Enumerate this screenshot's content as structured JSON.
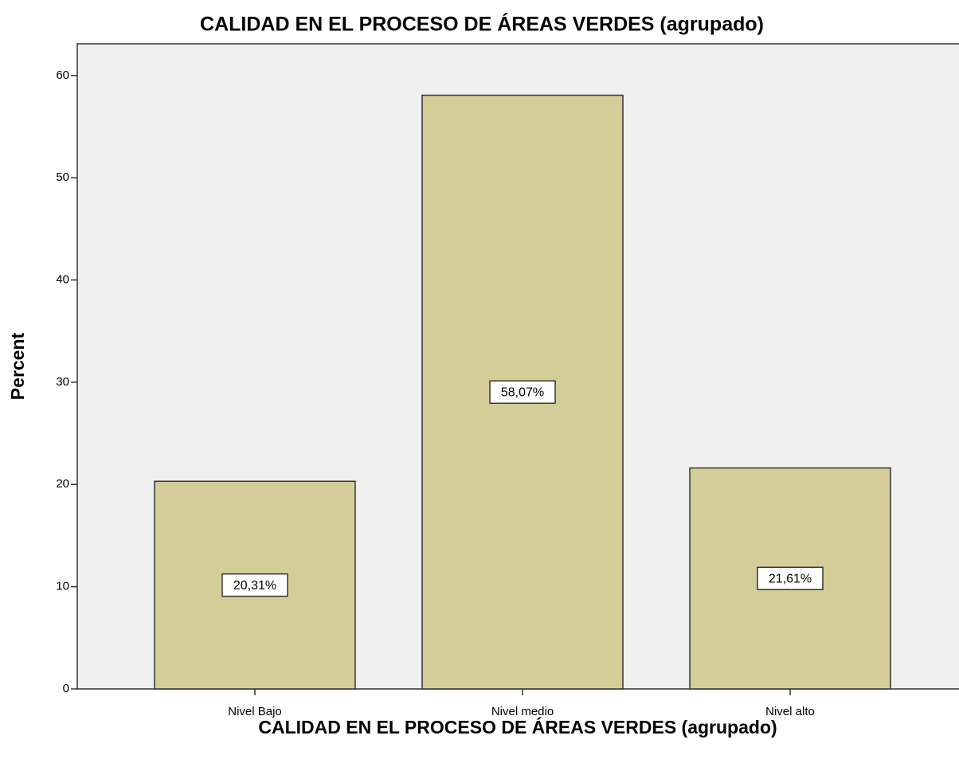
{
  "chart_data": {
    "type": "bar",
    "title": "CALIDAD EN EL PROCESO DE ÁREAS VERDES (agrupado)",
    "x_label": "CALIDAD EN EL PROCESO DE ÁREAS VERDES (agrupado)",
    "y_label": "Percent",
    "categories": [
      "Nivel Bajo",
      "Nivel medio",
      "Nivel alto"
    ],
    "values": [
      20.31,
      58.07,
      21.61
    ],
    "value_labels": [
      "20,31%",
      "58,07%",
      "21,61%"
    ],
    "color": "#d3ce97",
    "ylim": [
      0,
      63.1
    ],
    "yticks": [
      0,
      10,
      20,
      30,
      40,
      50,
      60
    ],
    "grid": false
  }
}
